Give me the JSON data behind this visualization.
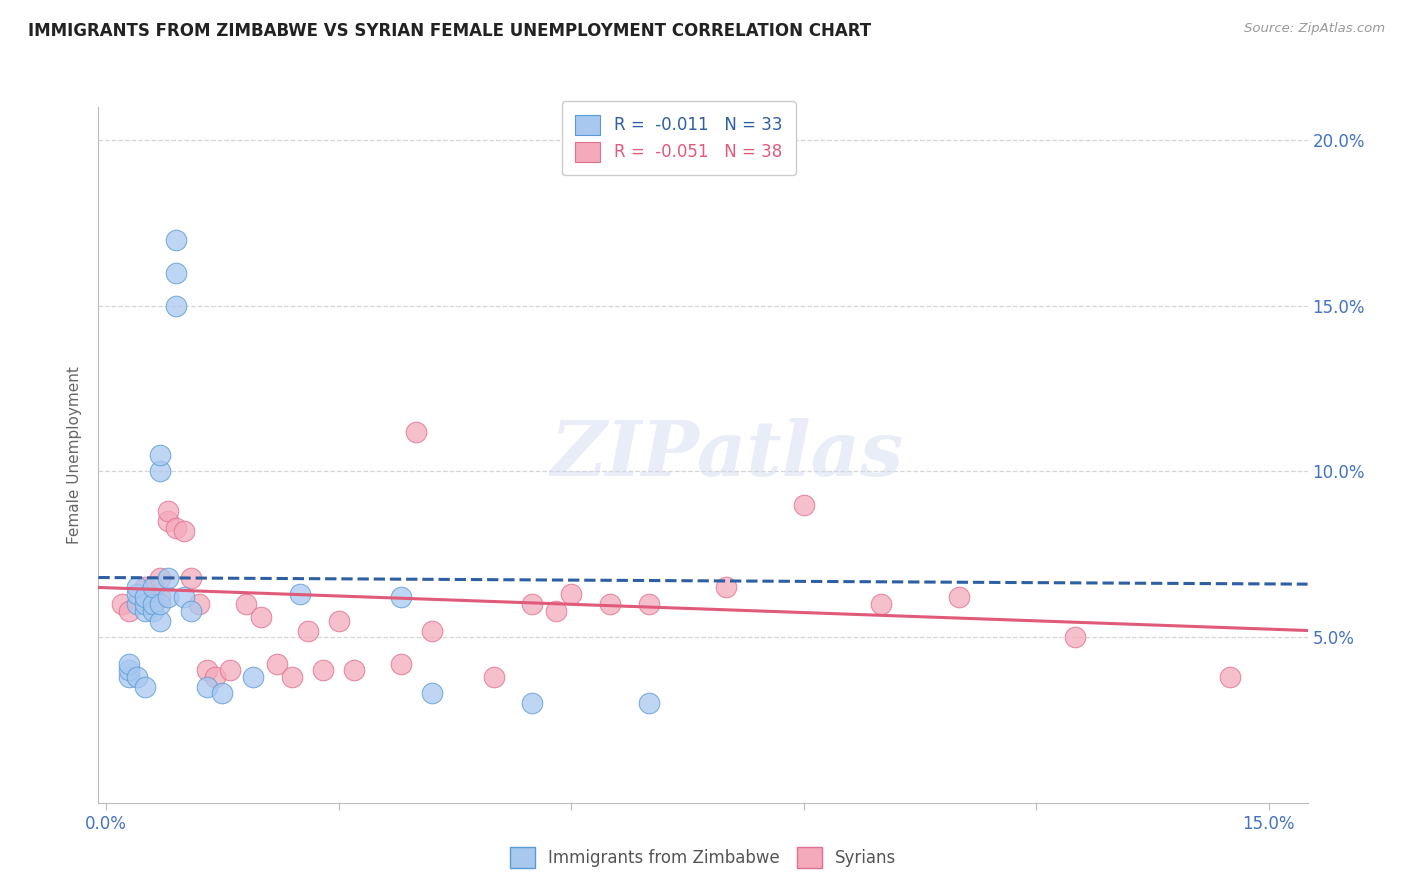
{
  "title": "IMMIGRANTS FROM ZIMBABWE VS SYRIAN FEMALE UNEMPLOYMENT CORRELATION CHART",
  "source": "Source: ZipAtlas.com",
  "ylabel": "Female Unemployment",
  "legend_blue_label": "Immigrants from Zimbabwe",
  "legend_pink_label": "Syrians",
  "legend_blue_r": "-0.011",
  "legend_blue_n": "33",
  "legend_pink_r": "-0.051",
  "legend_pink_n": "38",
  "watermark": "ZIPatlas",
  "ylim": [
    0.0,
    0.21
  ],
  "xlim": [
    -0.001,
    0.155
  ],
  "blue_color": "#A8C8F0",
  "blue_edge_color": "#5B9BD5",
  "pink_color": "#F4AABB",
  "pink_edge_color": "#E07090",
  "trend_blue_color": "#2E5FA3",
  "trend_pink_color": "#E05A7A",
  "grid_color": "#CCCCCC",
  "title_color": "#222222",
  "axis_label_color": "#4472C4",
  "ylabel_color": "#666666",
  "blue_x": [
    0.004,
    0.004,
    0.004,
    0.005,
    0.005,
    0.005,
    0.006,
    0.006,
    0.006,
    0.007,
    0.007,
    0.007,
    0.007,
    0.008,
    0.008,
    0.003,
    0.003,
    0.003,
    0.004,
    0.005,
    0.009,
    0.009,
    0.009,
    0.01,
    0.011,
    0.013,
    0.015,
    0.019,
    0.025,
    0.038,
    0.042,
    0.055,
    0.07
  ],
  "blue_y": [
    0.06,
    0.063,
    0.065,
    0.058,
    0.06,
    0.062,
    0.058,
    0.06,
    0.065,
    0.055,
    0.06,
    0.1,
    0.105,
    0.062,
    0.068,
    0.038,
    0.04,
    0.042,
    0.038,
    0.035,
    0.17,
    0.16,
    0.15,
    0.062,
    0.058,
    0.035,
    0.033,
    0.038,
    0.063,
    0.062,
    0.033,
    0.03,
    0.03
  ],
  "pink_x": [
    0.002,
    0.003,
    0.005,
    0.006,
    0.007,
    0.007,
    0.008,
    0.008,
    0.009,
    0.01,
    0.011,
    0.012,
    0.013,
    0.014,
    0.016,
    0.018,
    0.02,
    0.022,
    0.024,
    0.026,
    0.028,
    0.03,
    0.032,
    0.038,
    0.04,
    0.042,
    0.05,
    0.055,
    0.058,
    0.06,
    0.065,
    0.07,
    0.08,
    0.09,
    0.1,
    0.11,
    0.125,
    0.145
  ],
  "pink_y": [
    0.06,
    0.058,
    0.065,
    0.062,
    0.062,
    0.068,
    0.085,
    0.088,
    0.083,
    0.082,
    0.068,
    0.06,
    0.04,
    0.038,
    0.04,
    0.06,
    0.056,
    0.042,
    0.038,
    0.052,
    0.04,
    0.055,
    0.04,
    0.042,
    0.112,
    0.052,
    0.038,
    0.06,
    0.058,
    0.063,
    0.06,
    0.06,
    0.065,
    0.09,
    0.06,
    0.062,
    0.05,
    0.038
  ],
  "blue_trend_start_y": 0.068,
  "blue_trend_end_y": 0.066,
  "pink_trend_start_y": 0.065,
  "pink_trend_end_y": 0.052
}
